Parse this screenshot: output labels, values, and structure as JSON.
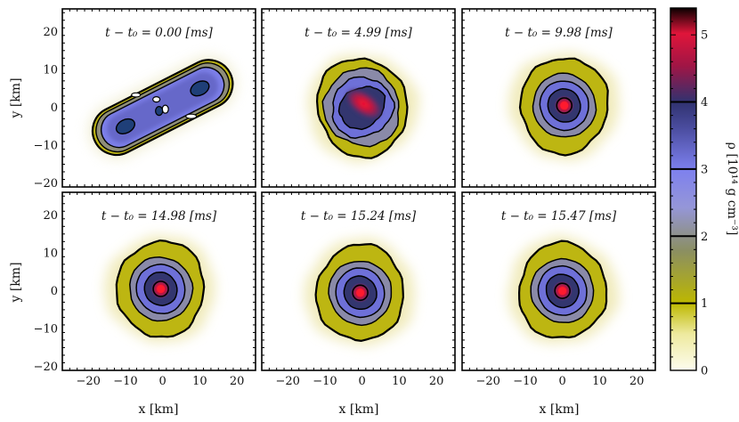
{
  "chart_data": {
    "type": "heatmap",
    "title": "",
    "xlabel": "x [km]",
    "ylabel": "y [km]",
    "xlim": [
      -27,
      25
    ],
    "ylim": [
      -21,
      26
    ],
    "xticks": [
      -20,
      -10,
      0,
      10,
      20
    ],
    "yticks": [
      -20,
      -10,
      0,
      10,
      20
    ],
    "contour_levels": [
      1,
      2,
      3,
      4
    ],
    "colorbar": {
      "label": "ρ [10¹⁴ g cm⁻³]",
      "range": [
        0,
        5.4
      ],
      "ticks": [
        0,
        1,
        2,
        3,
        4,
        5
      ],
      "colors": [
        "#fdfcef",
        "#bdb800",
        "#8b8f62",
        "#7d80ee",
        "#303270",
        "#e0153a",
        "#0a0000"
      ]
    },
    "panels": [
      {
        "label": "t − t₀ = 0.00 [ms]",
        "time_ms": 0.0,
        "morphology": "binary-stars",
        "centers_km": [
          [
            -10,
            -5
          ],
          [
            10,
            5
          ]
        ],
        "peak_density": 4.2
      },
      {
        "label": "t − t₀ = 4.99 [ms]",
        "time_ms": 4.99,
        "morphology": "elongated-remnant",
        "center_km": [
          0,
          0
        ],
        "peak_density": 5.1
      },
      {
        "label": "t − t₀ = 9.98 [ms]",
        "time_ms": 9.98,
        "morphology": "remnant",
        "center_km": [
          0.5,
          0.5
        ],
        "peak_density": 5.3
      },
      {
        "label": "t − t₀ = 14.98 [ms]",
        "time_ms": 14.98,
        "morphology": "remnant",
        "center_km": [
          -0.5,
          0.5
        ],
        "peak_density": 5.4
      },
      {
        "label": "t − t₀ = 15.24 [ms]",
        "time_ms": 15.24,
        "morphology": "remnant",
        "center_km": [
          -0.5,
          -0.5
        ],
        "peak_density": 5.4
      },
      {
        "label": "t − t₀ = 15.47 [ms]",
        "time_ms": 15.47,
        "morphology": "remnant",
        "center_km": [
          0,
          0
        ],
        "peak_density": 5.4
      }
    ]
  }
}
